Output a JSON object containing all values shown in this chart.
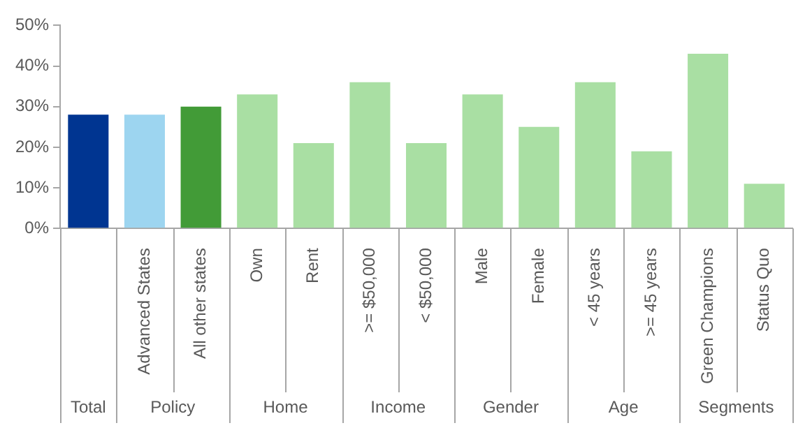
{
  "chart_data": {
    "type": "bar",
    "categories": [
      null,
      "Advanced States",
      "All other states",
      "Own",
      "Rent",
      ">= $50,000",
      "< $50,000",
      "Male",
      "Female",
      "< 45 years",
      ">= 45 years",
      "Green Champions",
      "Status Quo"
    ],
    "values": [
      28,
      28,
      30,
      33,
      21,
      36,
      21,
      33,
      25,
      36,
      19,
      43,
      11
    ],
    "colors": [
      "#003591",
      "#9dd5f0",
      "#429b37",
      "#a9dfa3",
      "#a9dfa3",
      "#a9dfa3",
      "#a9dfa3",
      "#a9dfa3",
      "#a9dfa3",
      "#a9dfa3",
      "#a9dfa3",
      "#a9dfa3",
      "#a9dfa3"
    ],
    "ylim": [
      0,
      50
    ],
    "yticks": [
      {
        "value": 0,
        "label": "0%"
      },
      {
        "value": 10,
        "label": "10%"
      },
      {
        "value": 20,
        "label": "20%"
      },
      {
        "value": 30,
        "label": "30%"
      },
      {
        "value": 40,
        "label": "40%"
      },
      {
        "value": 50,
        "label": "50%"
      }
    ],
    "annotations": [
      "Total",
      "Policy",
      "Home",
      "Income",
      "Gender",
      "Age",
      "Segments"
    ],
    "grid": false,
    "legend": false
  }
}
